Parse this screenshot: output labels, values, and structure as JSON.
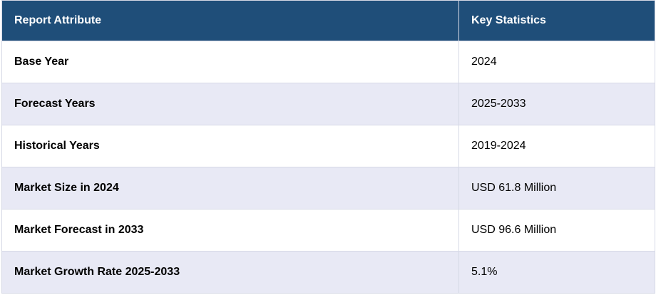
{
  "table": {
    "headers": [
      "Report Attribute",
      "Key Statistics"
    ],
    "rows": [
      [
        "Base Year",
        "2024"
      ],
      [
        "Forecast Years",
        "2025-2033"
      ],
      [
        "Historical Years",
        "2019-2024"
      ],
      [
        "Market Size in 2024",
        "USD 61.8 Million"
      ],
      [
        "Market Forecast in 2033",
        "USD 96.6 Million"
      ],
      [
        "Market Growth Rate 2025-2033",
        "5.1%"
      ]
    ]
  },
  "colors": {
    "header_bg": "#1f4e79",
    "header_text": "#ffffff",
    "row_alt_bg": "#e8e9f5",
    "row_bg": "#ffffff",
    "border": "#d6d9e6"
  }
}
